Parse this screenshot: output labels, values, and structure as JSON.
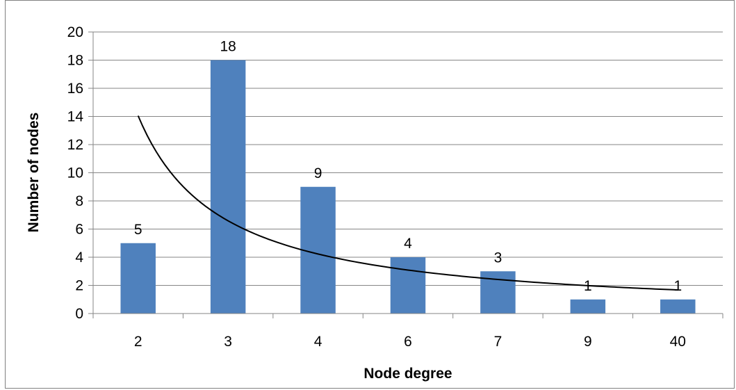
{
  "chart_data": {
    "type": "bar",
    "categories": [
      "2",
      "3",
      "4",
      "6",
      "7",
      "9",
      "40"
    ],
    "values": [
      5,
      18,
      9,
      4,
      3,
      1,
      1
    ],
    "data_labels": [
      "5",
      "18",
      "9",
      "4",
      "3",
      "1",
      "1"
    ],
    "xlabel": "Node degree",
    "ylabel": "Number of nodes",
    "ylim": [
      0,
      20
    ],
    "yticks": [
      "0",
      "2",
      "4",
      "6",
      "8",
      "10",
      "12",
      "14",
      "16",
      "18",
      "20"
    ],
    "grid": true,
    "legend": "none",
    "bar_color": "#4f81bd",
    "trendline": {
      "type": "power",
      "color": "#000000"
    }
  }
}
